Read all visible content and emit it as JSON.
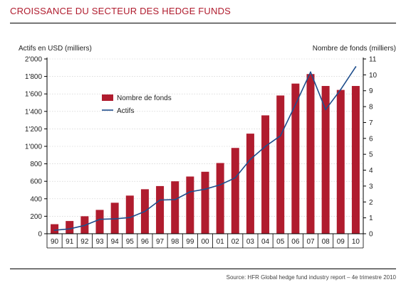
{
  "page": {
    "title": "CROISSANCE DU SECTEUR DES HEDGE FUNDS",
    "source": "Source: HFR Global hedge fund industry report – 4e trimestre 2010"
  },
  "colors": {
    "bar": "#b01c2e",
    "line": "#1f4e8c",
    "title": "#b01c2e"
  },
  "chart_data": {
    "type": "bar",
    "title": "",
    "left_axis_label": "Actifs en USD (milliers)",
    "right_axis_label": "Nombre de fonds (milliers)",
    "categories": [
      "90",
      "91",
      "92",
      "93",
      "94",
      "95",
      "96",
      "97",
      "98",
      "99",
      "00",
      "01",
      "02",
      "03",
      "04",
      "05",
      "06",
      "07",
      "08",
      "09",
      "10"
    ],
    "left_ylim": [
      0,
      2000
    ],
    "left_ticks": [
      "2'000",
      "1'800",
      "1'600",
      "1'400",
      "1'200",
      "1'000",
      "800",
      "600",
      "400",
      "200",
      "0"
    ],
    "left_tick_values": [
      2000,
      1800,
      1600,
      1400,
      1200,
      1000,
      800,
      600,
      400,
      200,
      0
    ],
    "right_ylim": [
      0,
      11
    ],
    "right_ticks": [
      "11",
      "10",
      "9",
      "8",
      "7",
      "6",
      "5",
      "4",
      "3",
      "2",
      "1",
      "0"
    ],
    "right_tick_values": [
      11,
      10,
      9,
      8,
      7,
      6,
      5,
      4,
      3,
      2,
      1,
      0
    ],
    "legend_position": "upper-left",
    "series": [
      {
        "name": "Nombre de fonds",
        "type": "bar",
        "axis": "right",
        "values": [
          0.6,
          0.8,
          1.1,
          1.5,
          1.95,
          2.4,
          2.8,
          3.0,
          3.3,
          3.6,
          3.9,
          4.45,
          5.4,
          6.3,
          7.45,
          8.7,
          9.45,
          10.05,
          9.3,
          9.05,
          9.3
        ]
      },
      {
        "name": "Actifs",
        "type": "line",
        "axis": "left",
        "values": [
          40,
          55,
          95,
          165,
          170,
          185,
          255,
          385,
          390,
          480,
          510,
          560,
          640,
          850,
          1000,
          1120,
          1480,
          1850,
          1420,
          1650,
          1910
        ]
      }
    ]
  }
}
